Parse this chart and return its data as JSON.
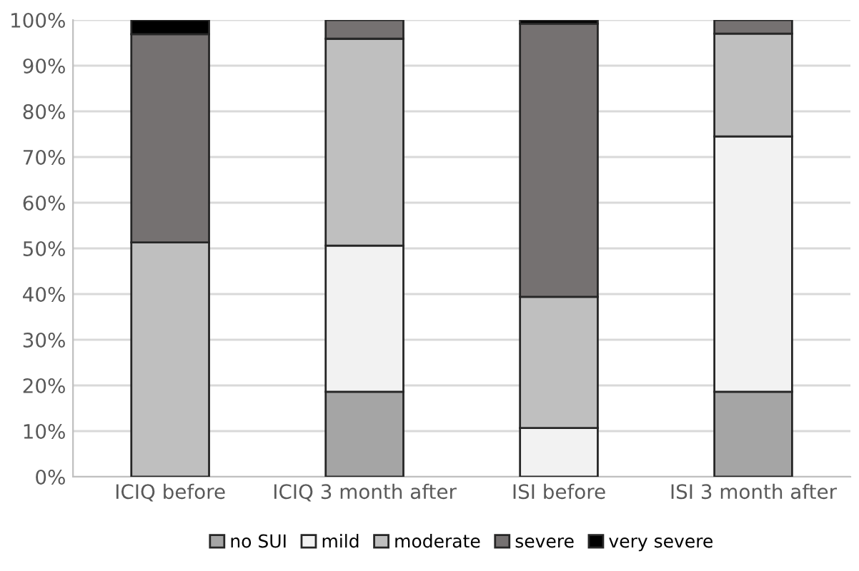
{
  "chart_data": {
    "type": "bar",
    "stacked": true,
    "categories": [
      "ICIQ before",
      "ICIQ 3 month after",
      "ISI before",
      "ISI 3 month after"
    ],
    "series": [
      {
        "name": "no SUI",
        "color": "#a5a5a5",
        "values": [
          0,
          18.6,
          0,
          18.6
        ]
      },
      {
        "name": "mild",
        "color": "#f2f2f2",
        "values": [
          null,
          32.0,
          10.7,
          55.9
        ]
      },
      {
        "name": "moderate",
        "color": "#bfbfbf",
        "values": [
          51.3,
          45.3,
          28.7,
          22.5
        ]
      },
      {
        "name": "severe",
        "color": "#757171",
        "values": [
          45.6,
          4.1,
          59.8,
          3.0
        ]
      },
      {
        "name": "very severe",
        "color": "#000000",
        "values": [
          3.1,
          0,
          0.8,
          0
        ]
      }
    ],
    "ylim": [
      0,
      100
    ],
    "yticks": [
      {
        "value": 0,
        "label": "0%"
      },
      {
        "value": 10,
        "label": "10%"
      },
      {
        "value": 20,
        "label": "20%"
      },
      {
        "value": 30,
        "label": "30%"
      },
      {
        "value": 40,
        "label": "40%"
      },
      {
        "value": 50,
        "label": "50%"
      },
      {
        "value": 60,
        "label": "60%"
      },
      {
        "value": 70,
        "label": "70%"
      },
      {
        "value": 80,
        "label": "80%"
      },
      {
        "value": 90,
        "label": "90%"
      },
      {
        "value": 100,
        "label": "100%"
      }
    ],
    "grid": "y",
    "legend": "bottom"
  }
}
